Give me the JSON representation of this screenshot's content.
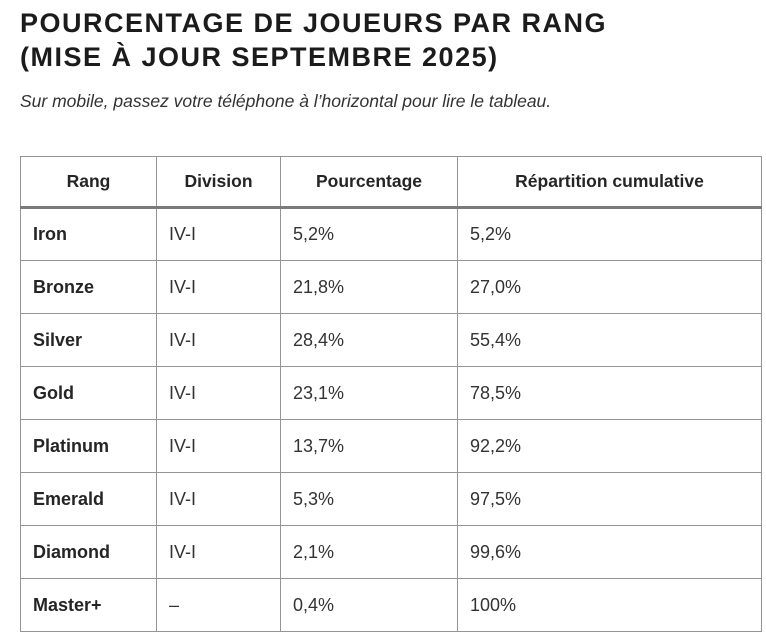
{
  "page": {
    "title_line1": "POURCENTAGE DE JOUEURS PAR RANG",
    "title_line2": "(MISE À JOUR SEPTEMBRE 2025)",
    "subtitle": "Sur mobile, passez votre téléphone à l’horizontal pour lire le tableau."
  },
  "table": {
    "headers": {
      "rank": "Rang",
      "division": "Division",
      "percentage": "Pourcentage",
      "cumulative": "Répartition cumulative"
    },
    "rows": [
      {
        "rank": "Iron",
        "division": "IV-I",
        "percentage": "5,2%",
        "cumulative": "5,2%"
      },
      {
        "rank": "Bronze",
        "division": "IV-I",
        "percentage": "21,8%",
        "cumulative": "27,0%"
      },
      {
        "rank": "Silver",
        "division": "IV-I",
        "percentage": "28,4%",
        "cumulative": "55,4%"
      },
      {
        "rank": "Gold",
        "division": "IV-I",
        "percentage": "23,1%",
        "cumulative": "78,5%"
      },
      {
        "rank": "Platinum",
        "division": "IV-I",
        "percentage": "13,7%",
        "cumulative": "92,2%"
      },
      {
        "rank": "Emerald",
        "division": "IV-I",
        "percentage": "5,3%",
        "cumulative": "97,5%"
      },
      {
        "rank": "Diamond",
        "division": "IV-I",
        "percentage": "2,1%",
        "cumulative": "99,6%"
      },
      {
        "rank": "Master+",
        "division": "–",
        "percentage": "0,4%",
        "cumulative": "100%"
      }
    ]
  },
  "colors": {
    "title_text": "#1b1b1b",
    "body_text": "#333333",
    "table_border": "#949494",
    "header_bottom_border": "#7a7a7a",
    "background": "#ffffff"
  }
}
